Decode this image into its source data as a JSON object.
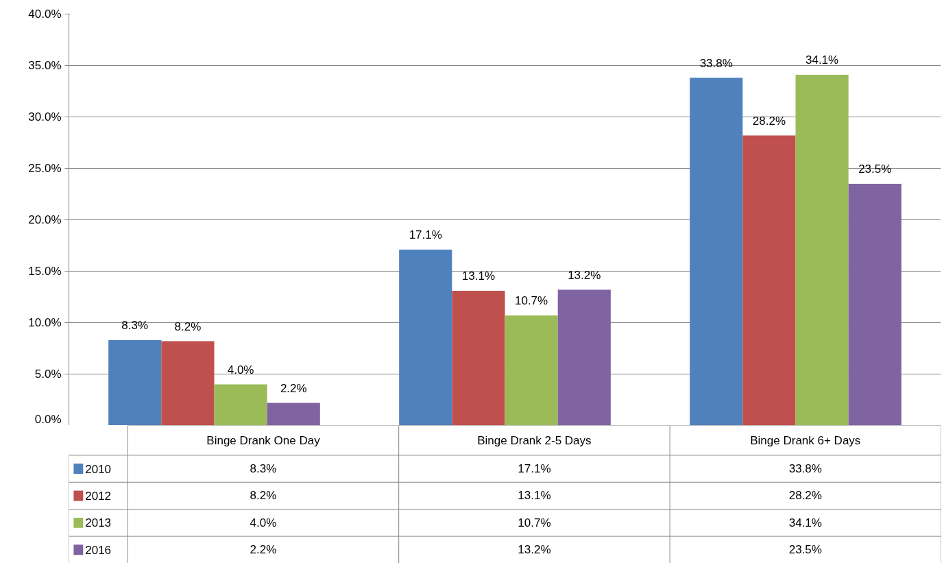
{
  "chart_data": {
    "type": "bar",
    "categories": [
      "Binge Drank One Day",
      "Binge Drank 2-5 Days",
      "Binge Drank 6+ Days"
    ],
    "series": [
      {
        "name": "2010",
        "color": "#4f81bd",
        "values": [
          8.3,
          17.1,
          33.8
        ],
        "value_labels": [
          "8.3%",
          "17.1%",
          "33.8%"
        ]
      },
      {
        "name": "2012",
        "color": "#c0504d",
        "values": [
          8.2,
          13.1,
          28.2
        ],
        "value_labels": [
          "8.2%",
          "13.1%",
          "28.2%"
        ]
      },
      {
        "name": "2013",
        "color": "#9bbb59",
        "values": [
          4.0,
          10.7,
          34.1
        ],
        "value_labels": [
          "4.0%",
          "10.7%",
          "34.1%"
        ]
      },
      {
        "name": "2016",
        "color": "#8064a2",
        "values": [
          2.2,
          13.2,
          23.5
        ],
        "value_labels": [
          "2.2%",
          "13.2%",
          "23.5%"
        ]
      }
    ],
    "ylim": [
      0,
      40
    ],
    "yticks": [
      {
        "value": 0,
        "label": "0.0%"
      },
      {
        "value": 5,
        "label": "5.0%"
      },
      {
        "value": 10,
        "label": "10.0%"
      },
      {
        "value": 15,
        "label": "15.0%"
      },
      {
        "value": 20,
        "label": "20.0%"
      },
      {
        "value": 25,
        "label": "25.0%"
      },
      {
        "value": 30,
        "label": "30.0%"
      },
      {
        "value": 35,
        "label": "35.0%"
      },
      {
        "value": 40,
        "label": "40.0%"
      }
    ],
    "grid": "y",
    "legend": "bottom"
  }
}
